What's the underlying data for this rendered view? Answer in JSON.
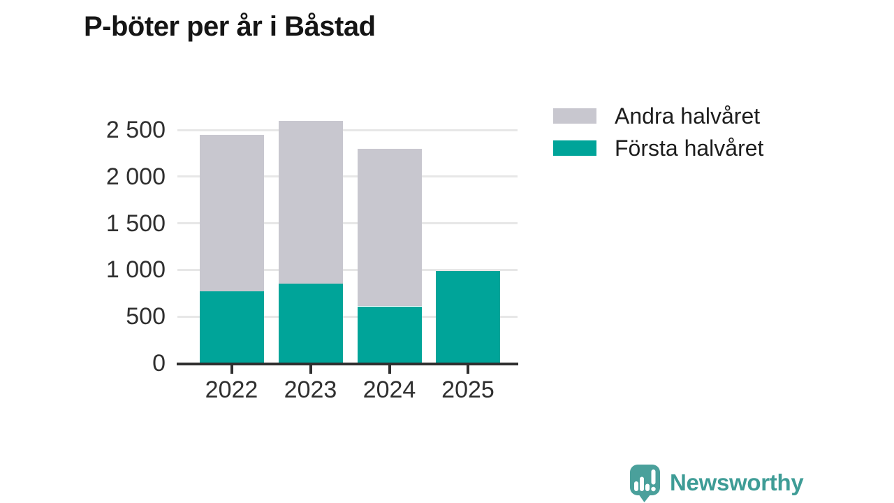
{
  "title": "P-böter per år i Båstad",
  "legend": {
    "items": [
      {
        "label": "Andra halvåret",
        "color": "#c8c7cf",
        "series": "second-half"
      },
      {
        "label": "Första halvåret",
        "color": "#00a499",
        "series": "first-half"
      }
    ]
  },
  "brand": {
    "name": "Newsworthy",
    "color": "#3e9c96",
    "icon": "newsworthy-speech-bubble-chart-icon",
    "icon_color": "#4aa09b"
  },
  "chart_data": {
    "type": "bar",
    "stacked": true,
    "title": "P-böter per år i Båstad",
    "categories": [
      "2022",
      "2023",
      "2024",
      "2025"
    ],
    "series": [
      {
        "name": "Första halvåret",
        "color": "#00a499",
        "values": [
          770,
          855,
          610,
          990
        ]
      },
      {
        "name": "Andra halvåret",
        "color": "#c8c7cf",
        "values": [
          1680,
          1745,
          1690,
          0
        ]
      }
    ],
    "xlabel": "",
    "ylabel": "",
    "ylim": [
      0,
      2500
    ],
    "yticks": [
      {
        "value": 0,
        "label": "0"
      },
      {
        "value": 500,
        "label": "500"
      },
      {
        "value": 1000,
        "label": "1 000"
      },
      {
        "value": 1500,
        "label": "1 500"
      },
      {
        "value": 2000,
        "label": "2 000"
      },
      {
        "value": 2500,
        "label": "2 500"
      }
    ],
    "grid": "horizontal",
    "legend_position": "top-right"
  }
}
